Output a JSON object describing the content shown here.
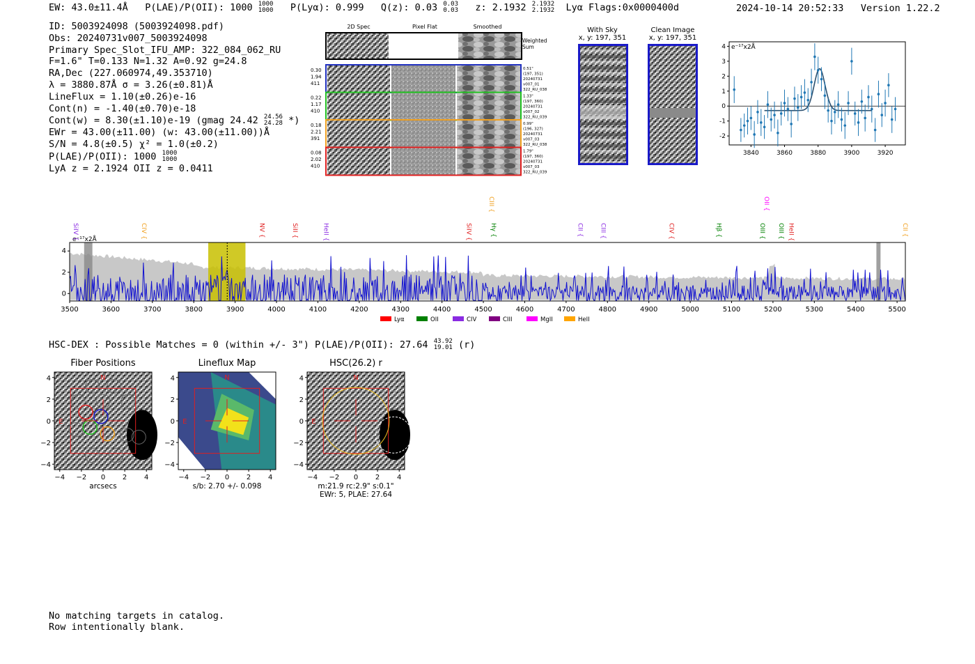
{
  "header": {
    "ew": "EW: 43.0±11.4Å",
    "plae_label": "P(LAE)/P(OII): 1000",
    "plae_hi": "1000",
    "plae_lo": "1000",
    "plya": "P(Lyα): 0.999",
    "qz_label": "Q(z): 0.03",
    "qz_hi": "0.03",
    "qz_lo": "0.03",
    "z_label": "z: 2.1932",
    "z_hi": "2.1932",
    "z_lo": "2.1932",
    "line_flags": "Lyα  Flags:0x0000400d",
    "datetime": "2024-10-14 20:52:33",
    "version": "Version 1.22.2"
  },
  "info": {
    "id": "ID: 5003924098 (5003924098.pdf)",
    "obs": "Obs: 20240731v007_5003924098",
    "primary": "Primary Spec_Slot_IFU_AMP: 322_084_062_RU",
    "params": "F=1.6\"  T=0.133  N=1.32  A=0.92  g=24.8",
    "radec": "RA,Dec (227.060974,49.353710)",
    "wave": "λ = 3880.87Å  σ = 3.26(±0.81)Å",
    "lineflux": "LineFlux = 1.10(±0.26)e-16",
    "contn": "Cont(n) = -1.40(±0.70)e-18",
    "contw_label": "Cont(w) = 8.30(±1.10)e-19 (gmag 24.42",
    "contw_hi": "24.56",
    "contw_lo": "24.28",
    "contw_end": "*)",
    "ewr": "EWr = 43.00(±11.00) (w: 43.00(±11.00))Å",
    "sn": "S/N = 4.8(±0.5)  χ² = 1.0(±0.2)",
    "plae_label": "P(LAE)/P(OII): 1000",
    "plae_hi": "1000",
    "plae_lo": "1000",
    "lya_z": "LyA z = 2.1924  OII z = 0.0411"
  },
  "cutouts": {
    "col_titles": [
      "2D Spec",
      "Pixel Flat",
      "Smoothed"
    ],
    "weighted_sum": "Weighted\nSum",
    "rows": [
      {
        "left": [
          "0.30",
          "1.94",
          "411"
        ],
        "right": [
          "0.51\"",
          "(197, 351)",
          "20240731",
          "v007_01",
          "322_RU_038"
        ],
        "color": "#2030c0"
      },
      {
        "left": [
          "0.22",
          "1.17",
          "410"
        ],
        "right": [
          "1.33\"",
          "(197, 360)",
          "20240731",
          "v007_02",
          "322_RU_039"
        ],
        "color": "#20c020"
      },
      {
        "left": [
          "0.18",
          "2.21",
          "391"
        ],
        "right": [
          "0.99\"",
          "(196, 327)",
          "20240731",
          "v007_03",
          "322_RU_038"
        ],
        "color": "#f0a020"
      },
      {
        "left": [
          "0.08",
          "2.02",
          "410"
        ],
        "right": [
          "1.79\"",
          "(197, 360)",
          "20240731",
          "v007_03",
          "322_RU_039"
        ],
        "color": "#e02020"
      }
    ]
  },
  "sky_panels": {
    "with_sky_title": "With Sky",
    "with_sky_coords": "x, y: 197, 351",
    "clean_title": "Clean Image",
    "clean_coords": "x, y: 197, 351"
  },
  "zoom_plot": {
    "unit_label": "e⁻¹⁷x2Å",
    "chart_data": {
      "type": "scatter",
      "title": "",
      "xlabel": "",
      "ylabel": "e-17 x2A",
      "xlim": [
        3827,
        3932
      ],
      "ylim": [
        -2.6,
        4.3
      ],
      "xticks": [
        3840,
        3860,
        3880,
        3900,
        3920
      ],
      "yticks": [
        -2,
        -1,
        0,
        1,
        2,
        3,
        4
      ],
      "x": [
        3830,
        3834,
        3836,
        3838,
        3840,
        3842,
        3844,
        3846,
        3848,
        3850,
        3852,
        3854,
        3856,
        3858,
        3860,
        3862,
        3864,
        3866,
        3868,
        3870,
        3872,
        3874,
        3876,
        3878,
        3880,
        3882,
        3884,
        3886,
        3888,
        3890,
        3892,
        3894,
        3896,
        3898,
        3900,
        3902,
        3904,
        3906,
        3908,
        3910,
        3912,
        3914,
        3916,
        3918,
        3920,
        3922,
        3924,
        3926
      ],
      "y": [
        1.1,
        -1.6,
        -1.3,
        -1.0,
        -0.8,
        -1.9,
        -0.4,
        -1.1,
        -1.4,
        0.1,
        -0.9,
        -0.6,
        -1.8,
        -0.5,
        0.2,
        -0.2,
        -1.2,
        0.5,
        -0.1,
        0.6,
        0.9,
        0.4,
        1.6,
        3.3,
        2.4,
        1.8,
        0.7,
        -0.3,
        -1.0,
        -0.4,
        0.1,
        -0.9,
        -1.3,
        0.2,
        3.0,
        -0.5,
        -1.1,
        0.3,
        -0.8,
        0.6,
        -0.2,
        -1.6,
        0.8,
        -0.6,
        0.2,
        1.4,
        -0.9,
        -0.2
      ],
      "err": [
        0.9,
        0.8,
        0.8,
        0.9,
        0.8,
        0.9,
        0.8,
        0.9,
        0.8,
        0.9,
        0.8,
        0.9,
        0.9,
        0.8,
        0.9,
        0.8,
        0.9,
        0.8,
        0.9,
        0.8,
        0.9,
        0.8,
        0.9,
        0.9,
        0.9,
        0.8,
        0.9,
        0.8,
        0.9,
        0.8,
        0.9,
        0.8,
        0.9,
        0.8,
        0.9,
        0.8,
        0.9,
        0.8,
        0.9,
        0.8,
        0.9,
        0.8,
        0.9,
        0.8,
        0.9,
        0.8,
        0.9,
        0.8
      ],
      "fit": {
        "center": 3880.9,
        "sigma": 3.26,
        "amp": 2.8,
        "base": -0.3
      }
    }
  },
  "full_spectrum": {
    "unit_label": "e⁻¹⁷x2Å",
    "chart_data": {
      "type": "line",
      "xlim": [
        3500,
        5520
      ],
      "ylim": [
        -0.7,
        4.8
      ],
      "xticks": [
        3500,
        3600,
        3700,
        3800,
        3900,
        4000,
        4100,
        4200,
        4300,
        4400,
        4500,
        4600,
        4700,
        4800,
        4900,
        5000,
        5100,
        5200,
        5300,
        5400,
        5500
      ],
      "yticks": [
        0,
        2,
        4
      ],
      "highlight": [
        3835,
        3925
      ],
      "line_marker": 3880.87,
      "grey_bands": [
        [
          3535,
          3555
        ],
        [
          5450,
          5460
        ]
      ],
      "lines": [
        {
          "name": "SiIV",
          "wave": 3505,
          "color": "#8a2be2",
          "tier": 1
        },
        {
          "name": "CIV",
          "wave": 3670,
          "color": "#f0a020",
          "tier": 1
        },
        {
          "name": "CIII",
          "wave": 4510,
          "color": "#f0a020",
          "tier": 0
        },
        {
          "name": "NV",
          "wave": 3955,
          "color": "#e02020",
          "tier": 1
        },
        {
          "name": "SiII",
          "wave": 4035,
          "color": "#e02020",
          "tier": 1
        },
        {
          "name": "HeII",
          "wave": 4110,
          "color": "#8a2be2",
          "tier": 1
        },
        {
          "name": "SiIV",
          "wave": 4455,
          "color": "#e02020",
          "tier": 1
        },
        {
          "name": "Hγ",
          "wave": 4515,
          "color": "#008000",
          "tier": 1
        },
        {
          "name": "CII",
          "wave": 4725,
          "color": "#8a2be2",
          "tier": 1
        },
        {
          "name": "CIII",
          "wave": 4780,
          "color": "#8a2be2",
          "tier": 1
        },
        {
          "name": "CIV",
          "wave": 4945,
          "color": "#e02020",
          "tier": 1
        },
        {
          "name": "Hβ",
          "wave": 5060,
          "color": "#008000",
          "tier": 1
        },
        {
          "name": "OII",
          "wave": 5175,
          "color": "#ff00ff",
          "tier": 0
        },
        {
          "name": "OIII",
          "wave": 5165,
          "color": "#008000",
          "tier": 1
        },
        {
          "name": "OIII",
          "wave": 5210,
          "color": "#008000",
          "tier": 1
        },
        {
          "name": "HeII",
          "wave": 5235,
          "color": "#e02020",
          "tier": 1
        },
        {
          "name": "CII",
          "wave": 5510,
          "color": "#f0a020",
          "tier": 1
        }
      ]
    },
    "legend": [
      {
        "label": "Lyα",
        "color": "#ff0000"
      },
      {
        "label": "OII",
        "color": "#008000"
      },
      {
        "label": "CIV",
        "color": "#8a2be2"
      },
      {
        "label": "CIII",
        "color": "#800080"
      },
      {
        "label": "MgII",
        "color": "#ff00ff"
      },
      {
        "label": "HeII",
        "color": "#ffa500"
      }
    ]
  },
  "hsc": {
    "summary_label": "HSC-DEX : Possible Matches = 0 (within +/- 3\")  P(LAE)/P(OII): 27.64",
    "summary_hi": "43.92",
    "summary_lo": "19.01",
    "summary_band": "(r)",
    "panels": [
      {
        "title": "Fiber Positions",
        "xlabel": "arcsecs",
        "caption": []
      },
      {
        "title": "Lineflux Map",
        "xlabel": "",
        "caption": [
          "s/b: 2.70 +/- 0.098"
        ]
      },
      {
        "title": "HSC(26.2) r",
        "xlabel": "",
        "caption": [
          "m:21.9 rc:2.9\"  s:0.1\"",
          "EWr: 5, PLAE: 27.64"
        ]
      }
    ],
    "ticks": [
      "−4",
      "−2",
      "0",
      "2",
      "4"
    ],
    "yticks": [
      "4",
      "2",
      "0",
      "−2",
      "−4"
    ],
    "compass_n": "N",
    "compass_e": "E"
  },
  "footer": {
    "line1": "No matching targets in catalog.",
    "line2": "Row intentionally blank."
  }
}
